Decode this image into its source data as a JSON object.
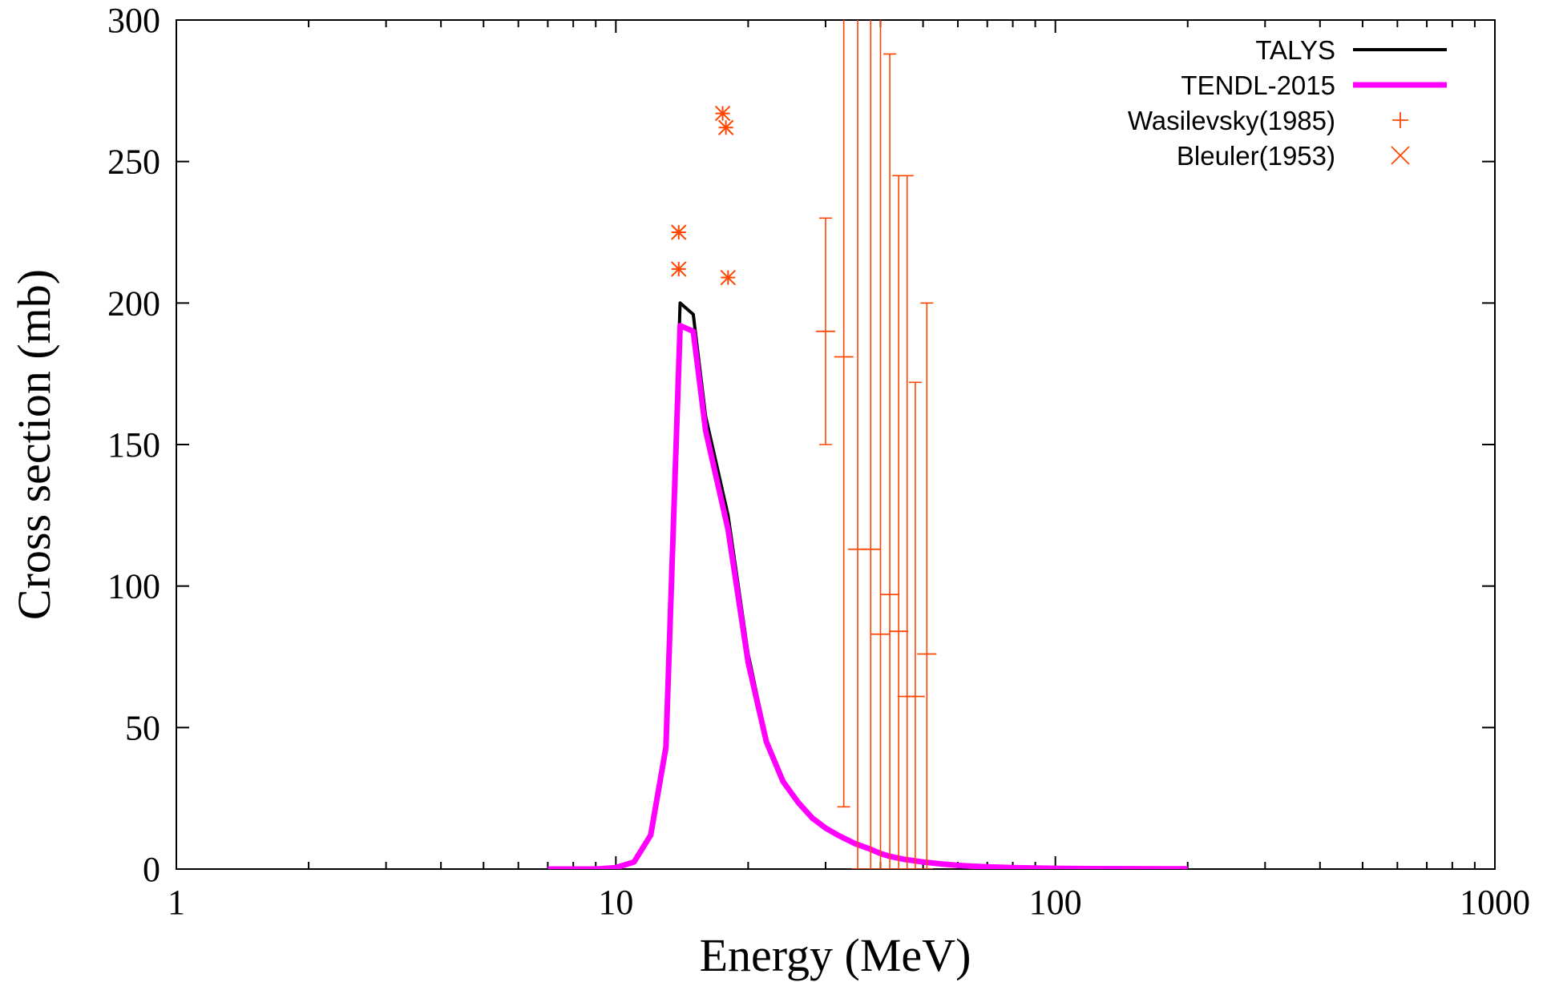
{
  "chart_data": {
    "type": "line",
    "xscale": "log",
    "xlim": [
      1,
      1000
    ],
    "ylim": [
      0,
      300
    ],
    "xlabel": "Energy (MeV)",
    "ylabel": "Cross section (mb)",
    "xticks": [
      1,
      10,
      100,
      1000
    ],
    "yticks": [
      0,
      50,
      100,
      150,
      200,
      250,
      300
    ],
    "xtick_labels": [
      "1",
      "10",
      "100",
      "1000"
    ],
    "ytick_labels": [
      "0",
      "50",
      "100",
      "150",
      "200",
      "250",
      "300"
    ],
    "grid": false,
    "legend_position": "top-right",
    "series": [
      {
        "name": "TALYS",
        "style": "line",
        "color": "#000000",
        "x": [
          7,
          8,
          9,
          10,
          11,
          12,
          13,
          14,
          15,
          16,
          18,
          20,
          22,
          24,
          26,
          28,
          30,
          32,
          35,
          38,
          40,
          42,
          45,
          50,
          55,
          60,
          65,
          70,
          80,
          90,
          100,
          120,
          150,
          200
        ],
        "y": [
          0,
          0,
          0,
          0.5,
          2.5,
          12,
          45,
          200,
          196,
          160,
          125,
          76,
          46,
          31,
          23.5,
          18,
          14.5,
          12,
          9,
          7,
          5.5,
          4.5,
          3.5,
          2.5,
          1.8,
          1.3,
          1.0,
          0.8,
          0.5,
          0.35,
          0.25,
          0.15,
          0.1,
          0.05
        ]
      },
      {
        "name": "TENDL-2015",
        "style": "line",
        "color": "#ff00ff",
        "x": [
          7,
          8,
          9,
          10,
          11,
          12,
          13,
          14,
          15,
          16,
          18,
          20,
          22,
          24,
          26,
          28,
          30,
          32,
          35,
          38,
          40,
          42,
          45,
          50,
          55,
          60,
          65,
          70,
          80,
          90,
          100,
          120,
          150,
          200
        ],
        "y": [
          0,
          0,
          0,
          0.5,
          2.5,
          12,
          43,
          192,
          190,
          155,
          120,
          73,
          45,
          31,
          23.5,
          18,
          14.5,
          12,
          9,
          7,
          5.5,
          4.5,
          3.5,
          2.5,
          1.8,
          1.3,
          1.0,
          0.8,
          0.5,
          0.35,
          0.25,
          0.15,
          0.1,
          0.05
        ]
      },
      {
        "name": "Wasilevsky(1985)",
        "style": "errorbar",
        "color": "#ff4500",
        "x": [
          30,
          33,
          35.5,
          38,
          40,
          42,
          44,
          46,
          48,
          51
        ],
        "y": [
          190,
          181,
          113,
          113,
          83,
          97,
          84,
          61,
          61,
          76
        ],
        "yerr_low": [
          150,
          22,
          0,
          0,
          0,
          0,
          0,
          0,
          0,
          0
        ],
        "yerr_high": [
          230,
          340,
          340,
          340,
          340,
          288,
          245,
          245,
          172,
          200
        ]
      },
      {
        "name": "Bleuler(1953)",
        "style": "markers",
        "color": "#ff4500",
        "x": [
          13.9,
          13.9,
          17.5,
          17.8,
          18.0
        ],
        "y": [
          225,
          212,
          267,
          262,
          209
        ]
      }
    ]
  }
}
